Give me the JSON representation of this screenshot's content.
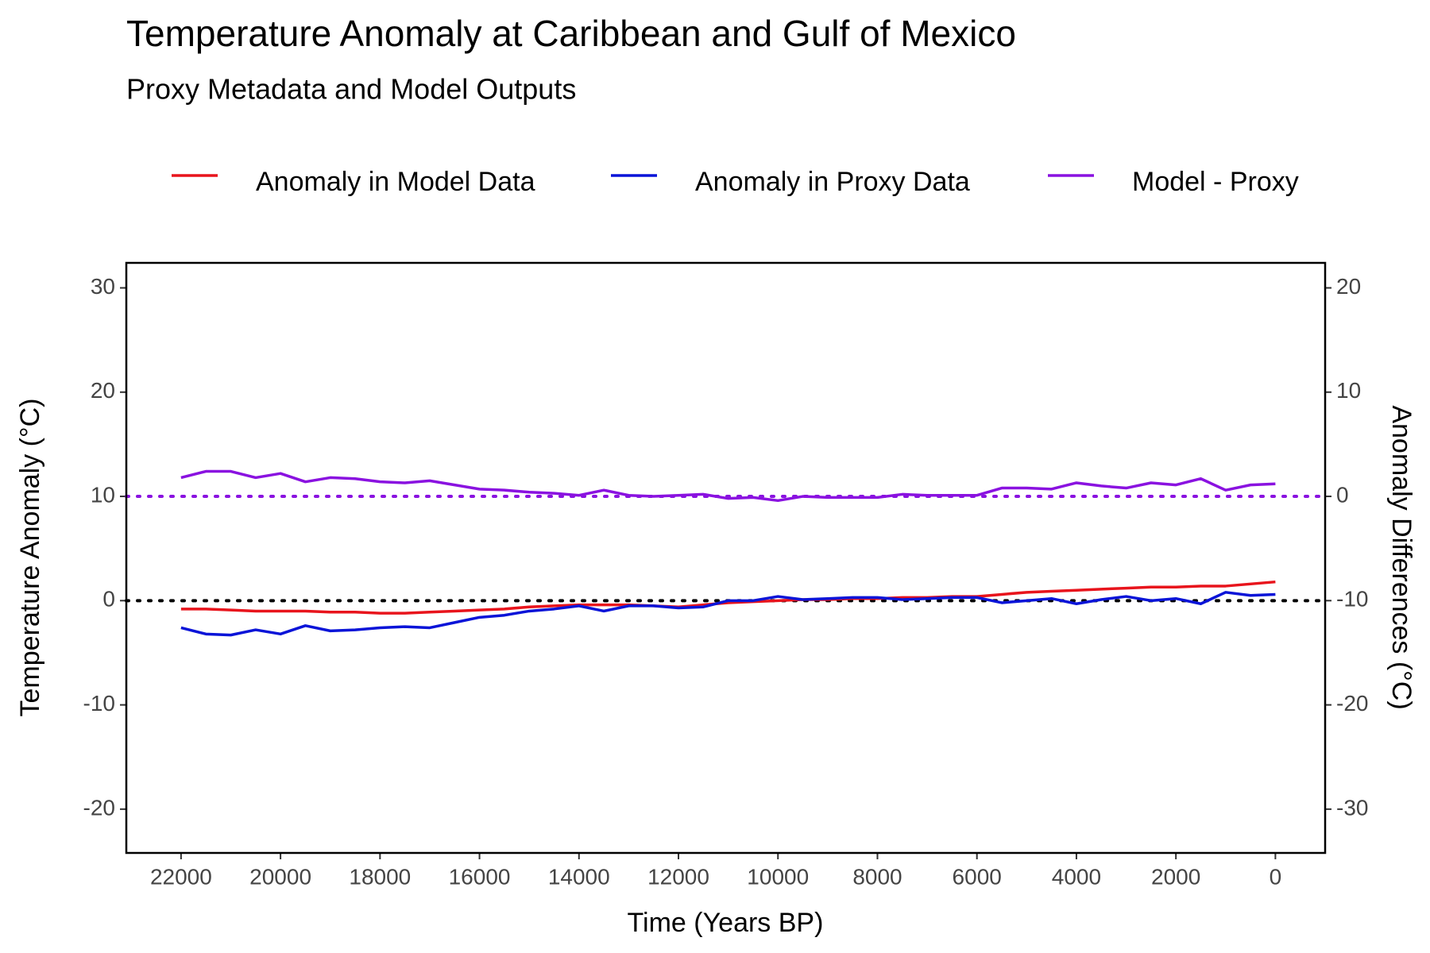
{
  "chart_data": {
    "type": "line",
    "title": "Temperature Anomaly at Caribbean and Gulf of Mexico",
    "subtitle": "Proxy Metadata and Model Outputs",
    "x_label": "Time (Years BP)",
    "y_label": "Temperature Anomaly (°C)",
    "y2_label": "Anomaly Differences (°C)",
    "x": [
      22000,
      21500,
      21000,
      20500,
      20000,
      19500,
      19000,
      18500,
      18000,
      17500,
      17000,
      16500,
      16000,
      15500,
      15000,
      14500,
      14000,
      13500,
      13000,
      12500,
      12000,
      11500,
      11000,
      10500,
      10000,
      9500,
      9000,
      8500,
      8000,
      7500,
      7000,
      6500,
      6000,
      5500,
      5000,
      4500,
      4000,
      3500,
      3000,
      2500,
      2000,
      1500,
      1000,
      500,
      0
    ],
    "series": [
      {
        "name": "Anomaly in Model Data",
        "color": "#e8141c",
        "axis": "y",
        "values": [
          -0.8,
          -0.8,
          -0.9,
          -1.0,
          -1.0,
          -1.0,
          -1.1,
          -1.1,
          -1.2,
          -1.2,
          -1.1,
          -1.0,
          -0.9,
          -0.8,
          -0.6,
          -0.5,
          -0.4,
          -0.4,
          -0.4,
          -0.5,
          -0.6,
          -0.4,
          -0.2,
          -0.1,
          0.0,
          0.1,
          0.1,
          0.2,
          0.2,
          0.3,
          0.3,
          0.4,
          0.4,
          0.6,
          0.8,
          0.9,
          1.0,
          1.1,
          1.2,
          1.3,
          1.3,
          1.4,
          1.4,
          1.6,
          1.8
        ]
      },
      {
        "name": "Anomaly in Proxy Data",
        "color": "#0a14d8",
        "axis": "y",
        "values": [
          -2.6,
          -3.2,
          -3.3,
          -2.8,
          -3.2,
          -2.4,
          -2.9,
          -2.8,
          -2.6,
          -2.5,
          -2.6,
          -2.1,
          -1.6,
          -1.4,
          -1.0,
          -0.8,
          -0.5,
          -1.0,
          -0.5,
          -0.5,
          -0.7,
          -0.6,
          0.0,
          0.0,
          0.4,
          0.1,
          0.2,
          0.3,
          0.3,
          0.1,
          0.2,
          0.3,
          0.3,
          -0.2,
          0.0,
          0.2,
          -0.3,
          0.1,
          0.4,
          0.0,
          0.2,
          -0.3,
          0.8,
          0.5,
          0.6
        ]
      },
      {
        "name": "Model - Proxy",
        "color": "#8a12e0",
        "axis": "y2",
        "values": [
          1.8,
          2.4,
          2.4,
          1.8,
          2.2,
          1.4,
          1.8,
          1.7,
          1.4,
          1.3,
          1.5,
          1.1,
          0.7,
          0.6,
          0.4,
          0.3,
          0.1,
          0.6,
          0.1,
          0.0,
          0.1,
          0.2,
          -0.2,
          -0.1,
          -0.4,
          0.0,
          -0.1,
          -0.1,
          -0.1,
          0.2,
          0.1,
          0.1,
          0.1,
          0.8,
          0.8,
          0.7,
          1.3,
          1.0,
          0.8,
          1.3,
          1.1,
          1.7,
          0.6,
          1.1,
          1.2
        ]
      }
    ],
    "reference_lines": [
      {
        "value": 0,
        "axis": "y",
        "color": "#000000"
      },
      {
        "value": 0,
        "axis": "y2",
        "color": "#8a12e0"
      }
    ],
    "xlim": [
      23100,
      -1000
    ],
    "xticks": [
      22000,
      20000,
      18000,
      16000,
      14000,
      12000,
      10000,
      8000,
      6000,
      4000,
      2000,
      0
    ],
    "ylim": [
      -24.2,
      32.4
    ],
    "yticks": [
      -20,
      -10,
      0,
      10,
      20,
      30
    ],
    "y2lim": [
      -34.2,
      22.4
    ],
    "y2ticks": [
      -30,
      -20,
      -10,
      0,
      10,
      20
    ],
    "legend": "top",
    "grid": false
  }
}
